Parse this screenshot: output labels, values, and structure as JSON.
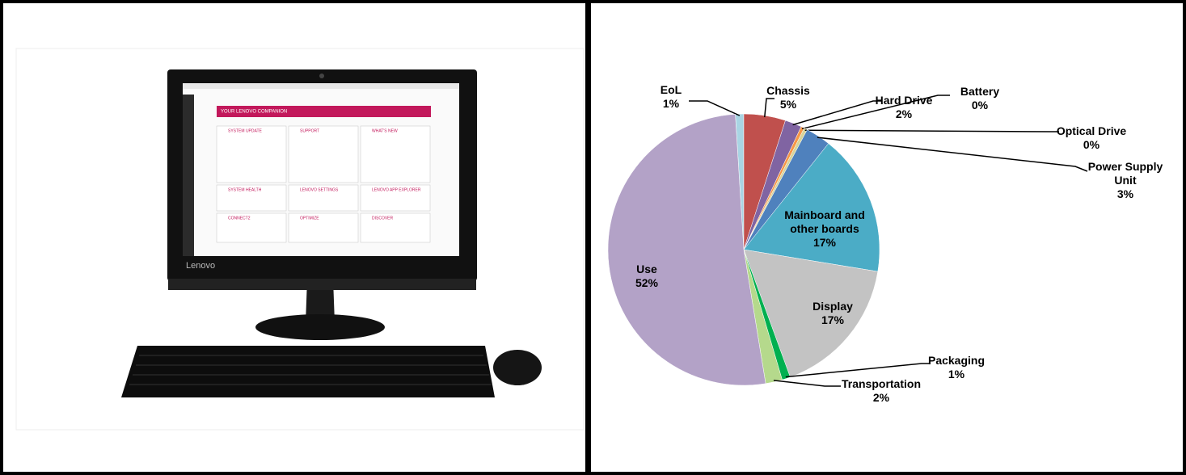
{
  "product_image": {
    "brand": "Lenovo",
    "screen": {
      "title": "YOUR LENOVO COMPANION",
      "tiles": [
        "SYSTEM UPDATE",
        "SUPPORT",
        "WHAT'S NEW",
        "SYSTEM HEALTH",
        "LENOVO SETTINGS",
        "LENOVO APP EXPLORER",
        "CONNECT2",
        "OPTIMIZE",
        "DISCOVER"
      ]
    }
  },
  "chart_data": {
    "type": "pie",
    "categories": [
      "EoL",
      "Chassis",
      "Hard Drive",
      "Battery",
      "Optical Drive",
      "Power Supply Unit",
      "Mainboard and other boards",
      "Display",
      "Packaging",
      "Transportation",
      "Use"
    ],
    "values": [
      1,
      5,
      2,
      0.4,
      0.4,
      3,
      17,
      17,
      1,
      2,
      52
    ],
    "value_labels": [
      "1%",
      "5%",
      "2%",
      "0%",
      "0%",
      "3%",
      "17%",
      "17%",
      "1%",
      "2%",
      "52%"
    ],
    "colors": [
      "#a9d5e4",
      "#c0504d",
      "#8064a2",
      "#f79646",
      "#d8d49a",
      "#4f81bd",
      "#4bacc6",
      "#c3c3c3",
      "#00b050",
      "#b5d98c",
      "#b3a2c7"
    ]
  }
}
